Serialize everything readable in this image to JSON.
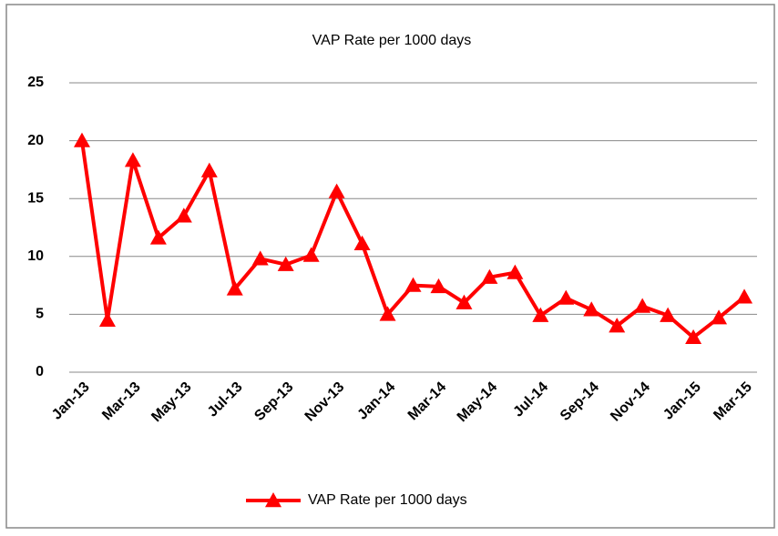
{
  "chart_data": {
    "type": "line",
    "title": "VAP Rate per 1000 days",
    "categories": [
      "Jan-13",
      null,
      "Mar-13",
      null,
      "May-13",
      null,
      "Jul-13",
      null,
      "Sep-13",
      null,
      "Nov-13",
      null,
      "Jan-14",
      null,
      "Mar-14",
      null,
      "May-14",
      null,
      "Jul-14",
      null,
      "Sep-14",
      null,
      "Nov-14",
      null,
      "Jan-15",
      null,
      "Mar-15"
    ],
    "series": [
      {
        "name": "VAP Rate per 1000 days",
        "color": "#ff0000",
        "values": [
          20,
          4.5,
          18.3,
          11.6,
          13.5,
          17.4,
          7.2,
          9.8,
          9.3,
          10.1,
          15.6,
          11.1,
          5.0,
          7.5,
          7.4,
          6.0,
          8.2,
          8.6,
          4.9,
          6.4,
          5.4,
          4.0,
          5.7,
          4.9,
          3.0,
          4.7,
          6.5
        ]
      }
    ],
    "ylim": [
      0,
      25
    ],
    "yticks": [
      0,
      5,
      10,
      15,
      20,
      25
    ],
    "grid": true,
    "legend": "bottom"
  }
}
